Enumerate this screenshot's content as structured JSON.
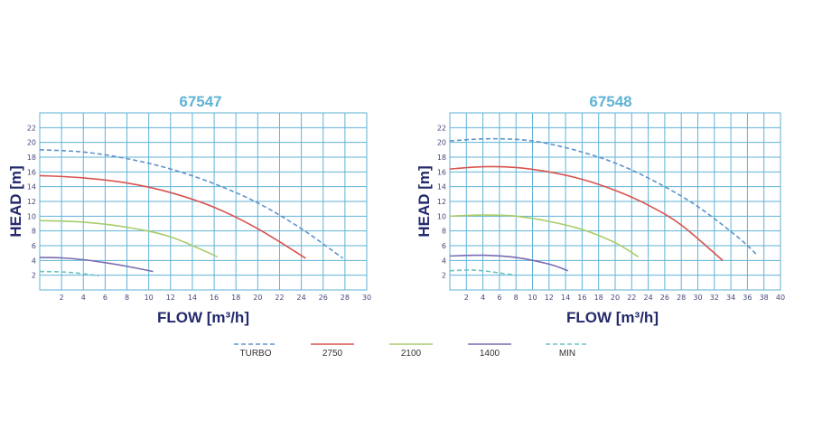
{
  "colors": {
    "grid": "#5fb3d6",
    "title": "#5fb3d6",
    "axis_title": "#232a6b",
    "background": "#ffffff"
  },
  "legend": [
    {
      "label": "TURBO",
      "color": "#5f93c9",
      "dashed": true
    },
    {
      "label": "2750",
      "color": "#d9534f",
      "dashed": false
    },
    {
      "label": "2100",
      "color": "#a8cc6a",
      "dashed": false
    },
    {
      "label": "1400",
      "color": "#7a6bb0",
      "dashed": false
    },
    {
      "label": "MIN",
      "color": "#6cc2c2",
      "dashed": true
    }
  ],
  "chart_data": [
    {
      "type": "line",
      "title": "67547",
      "xlabel": "FLOW [m³/h]",
      "ylabel": "HEAD [m]",
      "xlim": [
        0,
        30
      ],
      "ylim": [
        0,
        24
      ],
      "xticks": [
        2,
        4,
        6,
        8,
        10,
        12,
        14,
        16,
        18,
        20,
        22,
        24,
        26,
        28,
        30
      ],
      "yticks": [
        2,
        4,
        6,
        8,
        10,
        12,
        14,
        16,
        18,
        20,
        22
      ],
      "grid": true,
      "series": [
        {
          "name": "TURBO",
          "x": [
            0,
            4,
            8,
            12,
            16,
            20,
            24,
            27.8
          ],
          "y": [
            19,
            18.7,
            17.8,
            16.4,
            14.4,
            11.8,
            8.3,
            4.3
          ]
        },
        {
          "name": "2750",
          "x": [
            0,
            4,
            8,
            12,
            16,
            20,
            24.4
          ],
          "y": [
            15.5,
            15.2,
            14.5,
            13.2,
            11.2,
            8.3,
            4.3
          ]
        },
        {
          "name": "2100",
          "x": [
            0,
            4,
            8,
            12,
            16.3
          ],
          "y": [
            9.4,
            9.2,
            8.5,
            7.2,
            4.5
          ]
        },
        {
          "name": "1400",
          "x": [
            0,
            2,
            4,
            6,
            8,
            10.4
          ],
          "y": [
            4.4,
            4.35,
            4.1,
            3.7,
            3.2,
            2.5
          ]
        },
        {
          "name": "MIN",
          "x": [
            0,
            2,
            4,
            5.4
          ],
          "y": [
            2.5,
            2.45,
            2.2,
            1.9
          ]
        }
      ]
    },
    {
      "type": "line",
      "title": "67548",
      "xlabel": "FLOW [m³/h]",
      "ylabel": "HEAD [m]",
      "xlim": [
        0,
        40
      ],
      "ylim": [
        0,
        24
      ],
      "xticks": [
        2,
        4,
        6,
        8,
        10,
        12,
        14,
        16,
        18,
        20,
        22,
        24,
        26,
        28,
        30,
        32,
        34,
        36,
        38,
        40
      ],
      "yticks": [
        2,
        4,
        6,
        8,
        10,
        12,
        14,
        16,
        18,
        20,
        22
      ],
      "grid": true,
      "series": [
        {
          "name": "TURBO",
          "x": [
            0,
            5,
            10,
            15,
            20,
            25,
            30,
            35,
            37.2
          ],
          "y": [
            20.2,
            20.5,
            20.2,
            19,
            17.2,
            14.6,
            11.3,
            7,
            4.7
          ]
        },
        {
          "name": "2750",
          "x": [
            0,
            4,
            8,
            12,
            16,
            20,
            24,
            28,
            33
          ],
          "y": [
            16.4,
            16.7,
            16.6,
            16,
            15,
            13.5,
            11.5,
            8.8,
            4
          ]
        },
        {
          "name": "2100",
          "x": [
            0,
            4,
            8,
            12,
            16,
            20,
            22.8
          ],
          "y": [
            10,
            10.15,
            10,
            9.3,
            8.2,
            6.4,
            4.5
          ]
        },
        {
          "name": "1400",
          "x": [
            0,
            4,
            8,
            12,
            14.3
          ],
          "y": [
            4.6,
            4.7,
            4.4,
            3.5,
            2.6
          ]
        },
        {
          "name": "MIN",
          "x": [
            0,
            2,
            4,
            6,
            8
          ],
          "y": [
            2.6,
            2.7,
            2.6,
            2.3,
            2
          ]
        }
      ]
    }
  ]
}
